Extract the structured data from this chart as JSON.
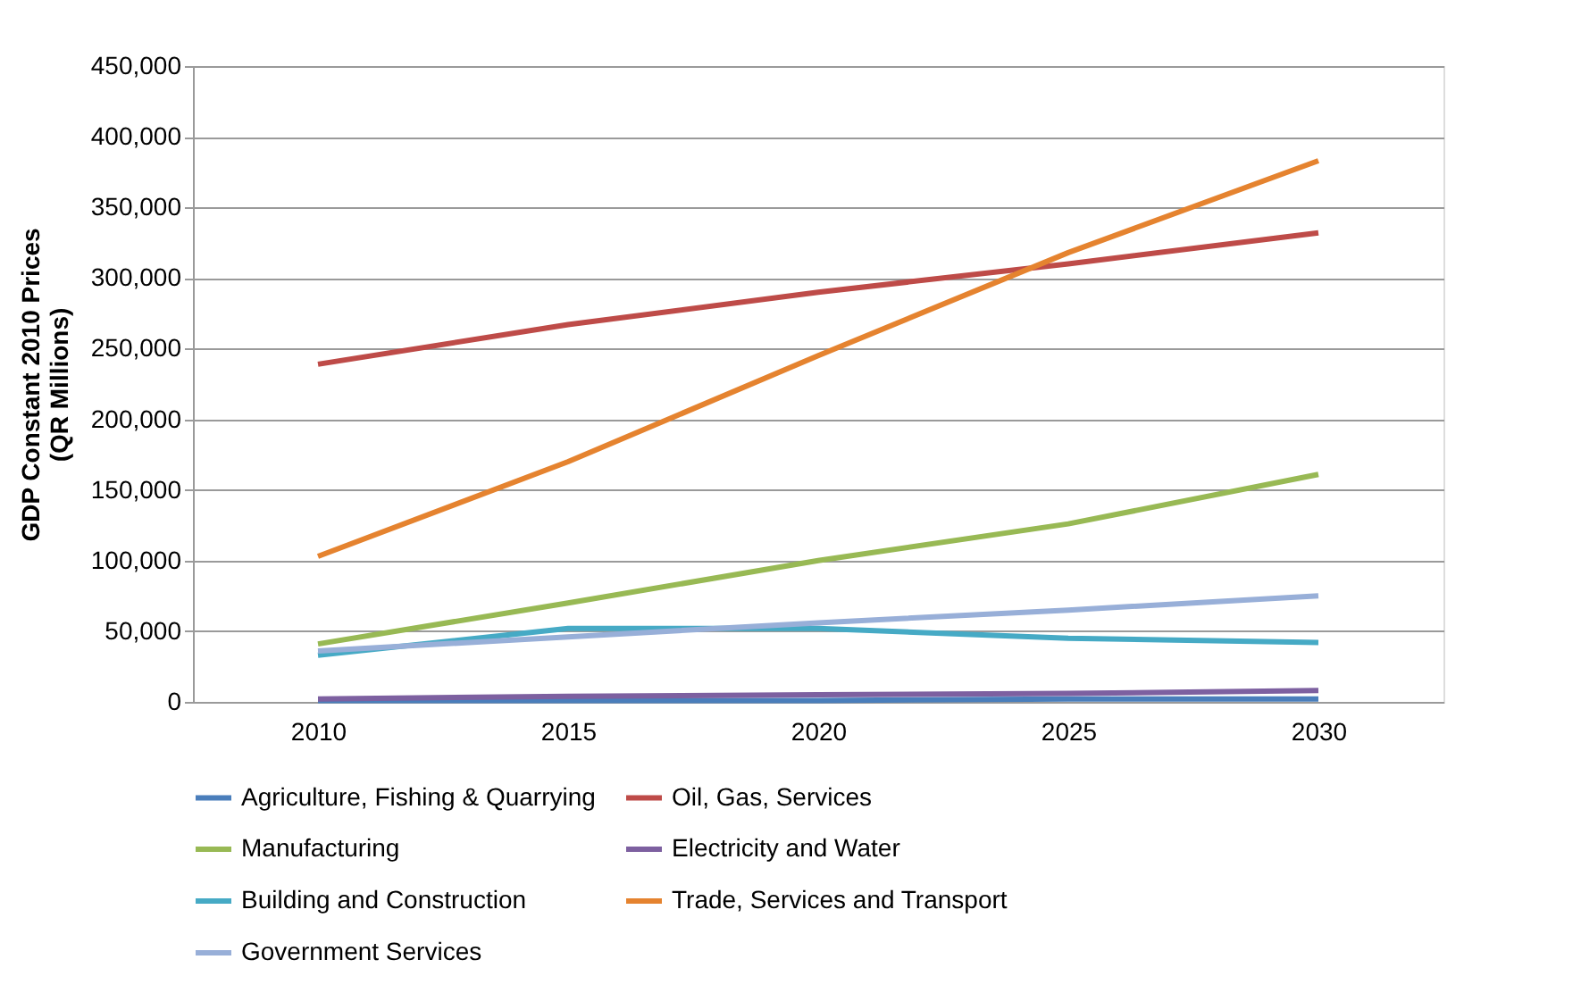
{
  "chart_data": {
    "type": "line",
    "ylabel": "GDP Constant 2010 Prices\n(QR Millions)",
    "categories": [
      "2010",
      "2015",
      "2020",
      "2025",
      "2030"
    ],
    "ylim": [
      0,
      450000
    ],
    "yticks": [
      {
        "value": 0,
        "label": "0"
      },
      {
        "value": 50000,
        "label": "50,000"
      },
      {
        "value": 100000,
        "label": "100,000"
      },
      {
        "value": 150000,
        "label": "150,000"
      },
      {
        "value": 200000,
        "label": "200,000"
      },
      {
        "value": 250000,
        "label": "250,000"
      },
      {
        "value": 300000,
        "label": "300,000"
      },
      {
        "value": 350000,
        "label": "350,000"
      },
      {
        "value": 400000,
        "label": "400,000"
      },
      {
        "value": 450000,
        "label": "450,000"
      }
    ],
    "grid": "y",
    "legend": "bottom",
    "marker": "none",
    "line_style": "solid",
    "series": [
      {
        "name": "Agriculture, Fishing & Quarrying",
        "color": "#4a7ebb",
        "values": [
          1000,
          1000,
          1000,
          2000,
          2000
        ]
      },
      {
        "name": "Oil, Gas, Services",
        "color": "#be4b48",
        "values": [
          239000,
          267000,
          290000,
          310000,
          332000
        ]
      },
      {
        "name": "Manufacturing",
        "color": "#98b954",
        "values": [
          41000,
          70000,
          100000,
          126000,
          161000
        ]
      },
      {
        "name": "Electricity and Water",
        "color": "#7d60a0",
        "values": [
          2000,
          4000,
          5000,
          6000,
          8000
        ]
      },
      {
        "name": "Building and Construction",
        "color": "#46aac5",
        "values": [
          33000,
          52000,
          52000,
          45000,
          42000
        ]
      },
      {
        "name": "Trade, Services and Transport",
        "color": "#e5832f",
        "values": [
          103000,
          170000,
          245000,
          318000,
          383000
        ]
      },
      {
        "name": "Government Services",
        "color": "#98afd8",
        "values": [
          36000,
          46000,
          56000,
          65000,
          75000
        ]
      }
    ]
  }
}
